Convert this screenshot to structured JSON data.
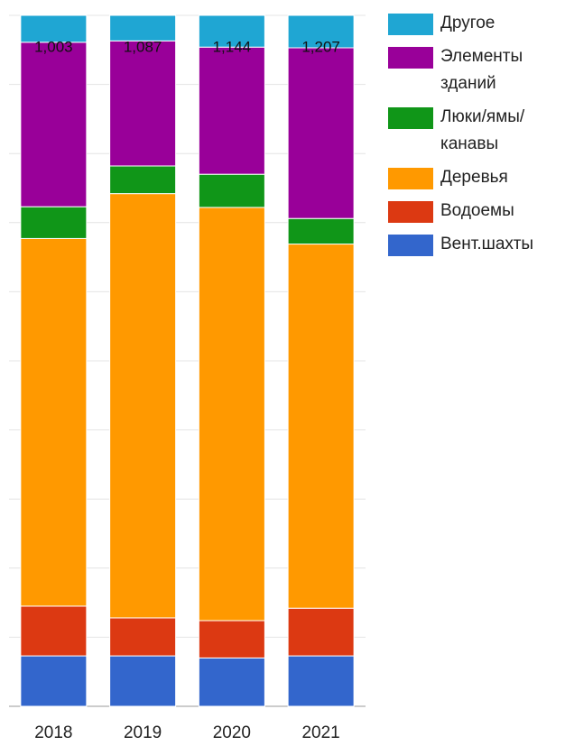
{
  "chart_data": {
    "type": "stacked_bar",
    "categories": [
      "2018",
      "2019",
      "2020",
      "2021"
    ],
    "series": [
      {
        "name": "Вент.шахты",
        "color": "#3366cc",
        "values": [
          7.3,
          7.3,
          7.0,
          7.3
        ]
      },
      {
        "name": "Водоемы",
        "color": "#dc3912",
        "values": [
          7.2,
          5.5,
          5.4,
          6.9
        ]
      },
      {
        "name": "Деревья",
        "color": "#ff9900",
        "values": [
          53.2,
          61.4,
          59.8,
          52.7
        ]
      },
      {
        "name": "Люки/ямы/канавы",
        "color": "#109618",
        "values": [
          4.6,
          4.0,
          4.8,
          3.7
        ]
      },
      {
        "name": "Элементы зданий",
        "color": "#990099",
        "values": [
          23.8,
          18.1,
          18.4,
          24.7
        ]
      },
      {
        "name": "Другое",
        "color": "#1fa6d3",
        "values": [
          3.9,
          3.7,
          4.6,
          4.7
        ]
      }
    ],
    "totals": {
      "values": [
        1003,
        1087,
        1144,
        1207
      ],
      "value_labels": [
        "1,003",
        "1,087",
        "1,144",
        "1,207"
      ]
    },
    "ylim": [
      0,
      100
    ],
    "yticks": [
      0,
      10,
      20,
      30,
      40,
      50,
      60,
      70,
      80,
      90,
      100
    ],
    "grid": true
  }
}
